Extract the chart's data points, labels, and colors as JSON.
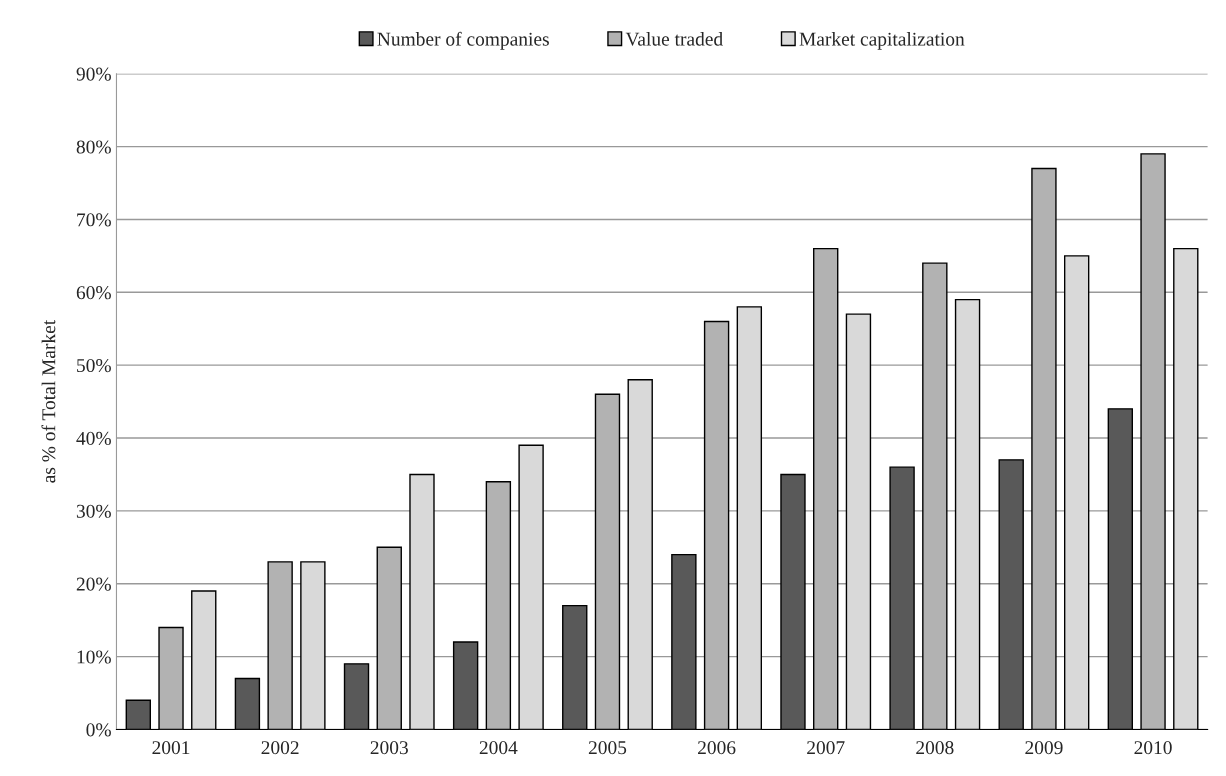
{
  "chart_data": {
    "type": "bar",
    "ylabel": "as % of Total Market",
    "categories": [
      "2001",
      "2002",
      "2003",
      "2004",
      "2005",
      "2006",
      "2007",
      "2008",
      "2009",
      "2010"
    ],
    "series": [
      {
        "name": "Number of companies",
        "color": "#595959",
        "values": [
          4,
          7,
          9,
          12,
          17,
          24,
          35,
          36,
          37,
          44
        ]
      },
      {
        "name": "Value traded",
        "color": "#b2b2b2",
        "values": [
          14,
          23,
          25,
          34,
          46,
          56,
          66,
          64,
          77,
          79
        ]
      },
      {
        "name": "Market capitalization",
        "color": "#d9d9d9",
        "values": [
          19,
          23,
          35,
          39,
          48,
          58,
          57,
          59,
          65,
          66
        ]
      }
    ],
    "ylim": [
      0,
      90
    ],
    "yticks": [
      {
        "value": 0,
        "label": "0%"
      },
      {
        "value": 10,
        "label": "10%"
      },
      {
        "value": 20,
        "label": "20%"
      },
      {
        "value": 30,
        "label": "30%"
      },
      {
        "value": 40,
        "label": "40%"
      },
      {
        "value": 50,
        "label": "50%"
      },
      {
        "value": 60,
        "label": "60%"
      },
      {
        "value": 70,
        "label": "70%"
      },
      {
        "value": 80,
        "label": "80%"
      },
      {
        "value": 90,
        "label": "90%"
      }
    ],
    "grid": "y",
    "legend": "top"
  }
}
